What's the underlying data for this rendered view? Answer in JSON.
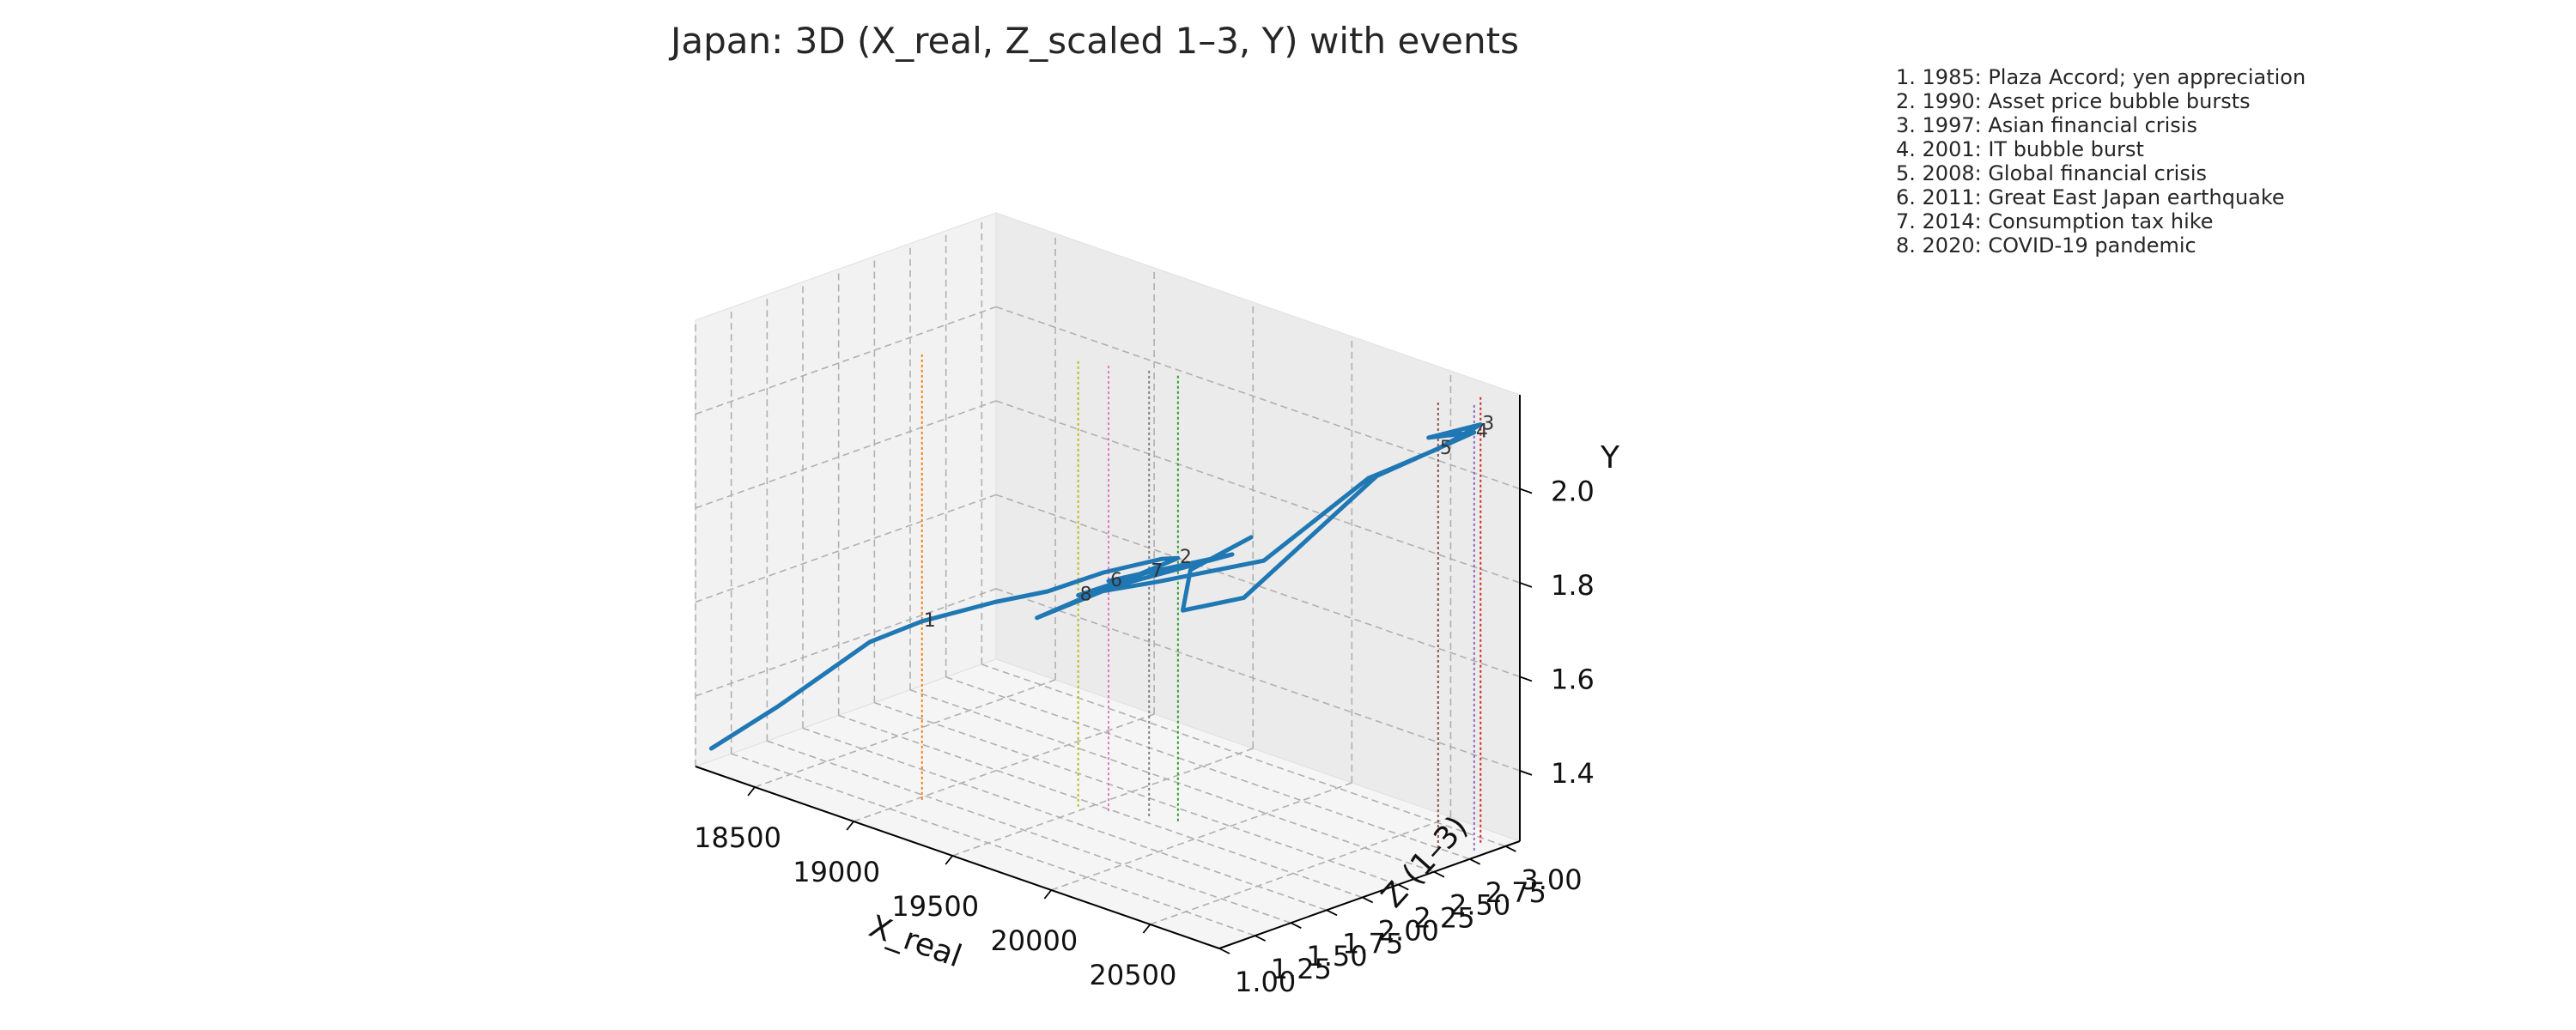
{
  "chart_data": {
    "type": "line3d",
    "title": "Japan: 3D (X_real, Z_scaled 1–3, Y) with events",
    "xlabel": "X_real",
    "ylabel": "Z (1–3)",
    "zlabel": "Y",
    "x_ticks": [
      "18500",
      "19000",
      "19500",
      "20000",
      "20500"
    ],
    "y_ticks": [
      "1.00",
      "1.25",
      "1.50",
      "1.75",
      "2.00",
      "2.25",
      "2.50",
      "2.75",
      "3.00"
    ],
    "z_ticks": [
      "1.4",
      "1.6",
      "1.8",
      "2.0"
    ],
    "series": [
      {
        "color": "#1f77b4",
        "points": [
          {
            "x": 18280,
            "z": 1.0,
            "y": 1.3
          },
          {
            "x": 18620,
            "z": 1.0,
            "y": 1.44
          },
          {
            "x": 18800,
            "z": 1.1,
            "y": 1.53
          },
          {
            "x": 18900,
            "z": 1.25,
            "y": 1.59
          },
          {
            "x": 19020,
            "z": 1.45,
            "y": 1.63
          },
          {
            "x": 19170,
            "z": 1.75,
            "y": 1.66
          },
          {
            "x": 19330,
            "z": 1.9,
            "y": 1.69
          },
          {
            "x": 19540,
            "z": 2.0,
            "y": 1.75
          },
          {
            "x": 19760,
            "z": 2.1,
            "y": 1.8
          },
          {
            "x": 19830,
            "z": 2.12,
            "y": 1.81
          },
          {
            "x": 19590,
            "z": 1.98,
            "y": 1.73
          },
          {
            "x": 19290,
            "z": 1.88,
            "y": 1.63
          },
          {
            "x": 19600,
            "z": 2.0,
            "y": 1.73
          },
          {
            "x": 20010,
            "z": 2.25,
            "y": 1.83
          },
          {
            "x": 19580,
            "z": 1.98,
            "y": 1.74
          },
          {
            "x": 19720,
            "z": 2.07,
            "y": 1.77
          },
          {
            "x": 19470,
            "z": 1.92,
            "y": 1.7
          },
          {
            "x": 19780,
            "z": 2.05,
            "y": 1.76
          },
          {
            "x": 20170,
            "z": 2.25,
            "y": 1.84
          },
          {
            "x": 20380,
            "z": 2.4,
            "y": 1.96
          },
          {
            "x": 20520,
            "z": 2.5,
            "y": 2.04
          },
          {
            "x": 20580,
            "z": 2.55,
            "y": 2.06
          },
          {
            "x": 20690,
            "z": 2.75,
            "y": 2.1
          },
          {
            "x": 20760,
            "z": 2.95,
            "y": 2.14
          },
          {
            "x": 20620,
            "z": 2.78,
            "y": 2.11
          },
          {
            "x": 20800,
            "z": 2.85,
            "y": 2.14
          },
          {
            "x": 20560,
            "z": 2.5,
            "y": 2.05
          },
          {
            "x": 20250,
            "z": 2.0,
            "y": 1.8
          },
          {
            "x": 20050,
            "z": 1.85,
            "y": 1.76
          },
          {
            "x": 19980,
            "z": 2.0,
            "y": 1.82
          },
          {
            "x": 20070,
            "z": 2.3,
            "y": 1.87
          }
        ]
      }
    ],
    "events": [
      {
        "id": "1",
        "text": "1. 1985: Plaza Accord; yen appreciation",
        "color": "#ff7f0e",
        "x": 19020,
        "z": 1.45,
        "y": 1.63
      },
      {
        "id": "2",
        "text": "2. 1990: Asset price bubble bursts",
        "color": "#2ca02c",
        "x": 19830,
        "z": 2.12,
        "y": 1.81
      },
      {
        "id": "3",
        "text": "3. 1997: Asian financial crisis",
        "color": "#d62728",
        "x": 20760,
        "z": 2.95,
        "y": 2.14
      },
      {
        "id": "4",
        "text": "4. 2001: IT bubble burst",
        "color": "#9467bd",
        "x": 20800,
        "z": 2.85,
        "y": 2.14
      },
      {
        "id": "5",
        "text": "5. 2008: Global financial crisis",
        "color": "#8c564b",
        "x": 20690,
        "z": 2.75,
        "y": 2.1
      },
      {
        "id": "6",
        "text": "6. 2011: Great East Japan earthquake",
        "color": "#e377c2",
        "x": 19580,
        "z": 1.98,
        "y": 1.74
      },
      {
        "id": "7",
        "text": "7. 2014: Consumption tax hike",
        "color": "#7f7f7f",
        "x": 19720,
        "z": 2.07,
        "y": 1.77
      },
      {
        "id": "8",
        "text": "8. 2020: COVID-19 pandemic",
        "color": "#bcbd22",
        "x": 19470,
        "z": 1.92,
        "y": 1.7
      }
    ],
    "xlim": [
      18200,
      20850
    ],
    "ylim": [
      1.0,
      3.1
    ],
    "zlim": [
      1.25,
      2.2
    ],
    "grid": true,
    "legend_position": "top-right"
  }
}
